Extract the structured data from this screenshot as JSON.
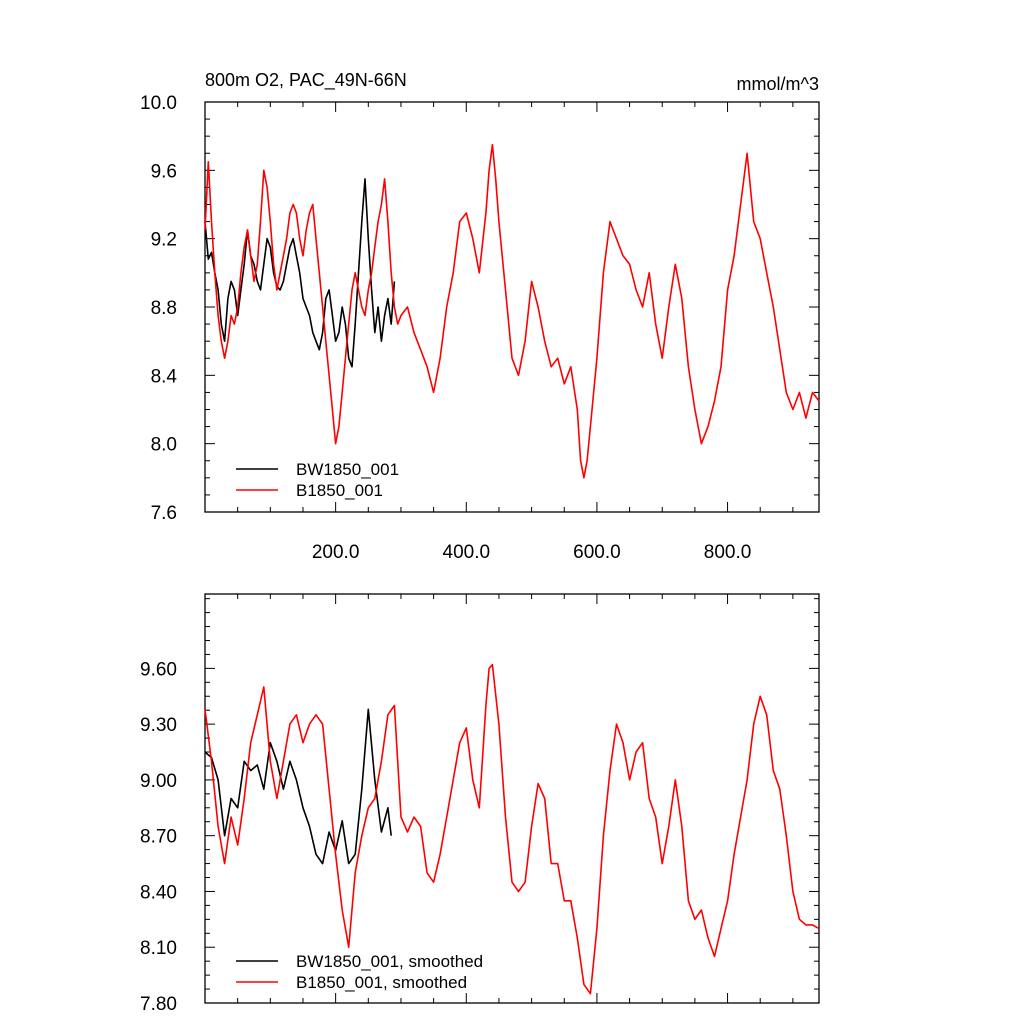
{
  "chart_data": [
    {
      "type": "line",
      "title": "800m O2, PAC_49N-66N",
      "units": "mmol/m^3",
      "xlabel": "",
      "ylabel": "",
      "xlim": [
        0,
        940
      ],
      "ylim": [
        7.6,
        10.0
      ],
      "xticks": [
        200,
        400,
        600,
        800
      ],
      "xtick_labels": [
        "200.0",
        "400.0",
        "600.0",
        "800.0"
      ],
      "yticks": [
        7.6,
        8.0,
        8.4,
        8.8,
        9.2,
        9.6,
        10.0
      ],
      "ytick_labels": [
        "7.6",
        "8.0",
        "8.4",
        "8.8",
        "9.2",
        "9.6",
        "10.0"
      ],
      "grid": false,
      "legend_position": "bottom-left",
      "series": [
        {
          "name": "BW1850_001",
          "color": "#000000",
          "x": [
            0,
            5,
            10,
            15,
            20,
            25,
            30,
            35,
            40,
            45,
            50,
            55,
            60,
            65,
            70,
            75,
            80,
            85,
            90,
            95,
            100,
            105,
            110,
            115,
            120,
            125,
            130,
            135,
            140,
            145,
            150,
            155,
            160,
            165,
            170,
            175,
            180,
            185,
            190,
            195,
            200,
            205,
            210,
            215,
            220,
            225,
            230,
            235,
            240,
            245,
            250,
            255,
            260,
            265,
            270,
            275,
            280,
            285,
            290
          ],
          "y": [
            9.3,
            9.08,
            9.12,
            9.0,
            8.9,
            8.7,
            8.6,
            8.85,
            8.95,
            8.9,
            8.75,
            8.9,
            9.05,
            9.25,
            9.1,
            9.05,
            8.95,
            8.9,
            9.05,
            9.2,
            9.15,
            9.0,
            8.92,
            8.9,
            8.95,
            9.05,
            9.15,
            9.2,
            9.1,
            9.0,
            8.85,
            8.8,
            8.75,
            8.65,
            8.6,
            8.55,
            8.65,
            8.85,
            8.9,
            8.75,
            8.6,
            8.65,
            8.8,
            8.7,
            8.5,
            8.45,
            8.7,
            9.0,
            9.3,
            9.55,
            9.2,
            8.9,
            8.65,
            8.8,
            8.6,
            8.75,
            8.85,
            8.7,
            8.95
          ]
        },
        {
          "name": "B1850_001",
          "color": "#ff0000",
          "x": [
            0,
            5,
            10,
            15,
            20,
            25,
            30,
            35,
            40,
            45,
            50,
            55,
            60,
            65,
            70,
            75,
            80,
            85,
            90,
            95,
            100,
            105,
            110,
            115,
            120,
            125,
            130,
            135,
            140,
            145,
            150,
            155,
            160,
            165,
            170,
            175,
            180,
            185,
            190,
            195,
            200,
            205,
            210,
            215,
            220,
            225,
            230,
            235,
            240,
            245,
            250,
            255,
            260,
            265,
            270,
            275,
            280,
            285,
            290,
            295,
            300,
            310,
            320,
            330,
            340,
            350,
            360,
            370,
            380,
            390,
            400,
            410,
            420,
            430,
            435,
            440,
            445,
            450,
            460,
            470,
            480,
            490,
            500,
            510,
            520,
            530,
            540,
            550,
            560,
            570,
            575,
            580,
            585,
            590,
            600,
            610,
            620,
            630,
            640,
            650,
            660,
            670,
            680,
            690,
            700,
            710,
            720,
            730,
            740,
            750,
            760,
            770,
            780,
            790,
            800,
            810,
            820,
            830,
            840,
            850,
            860,
            870,
            880,
            890,
            900,
            910,
            920,
            930,
            940
          ],
          "y": [
            9.25,
            9.65,
            9.3,
            9.0,
            8.75,
            8.6,
            8.5,
            8.6,
            8.75,
            8.7,
            8.8,
            9.0,
            9.15,
            9.25,
            9.1,
            8.95,
            9.05,
            9.3,
            9.6,
            9.5,
            9.3,
            9.05,
            8.9,
            9.0,
            9.1,
            9.2,
            9.35,
            9.4,
            9.35,
            9.2,
            9.1,
            9.25,
            9.35,
            9.4,
            9.2,
            9.0,
            8.8,
            8.6,
            8.4,
            8.2,
            8.0,
            8.1,
            8.3,
            8.5,
            8.7,
            8.9,
            9.0,
            8.9,
            8.8,
            8.75,
            8.9,
            9.0,
            9.15,
            9.3,
            9.4,
            9.55,
            9.3,
            9.0,
            8.8,
            8.7,
            8.75,
            8.8,
            8.65,
            8.55,
            8.45,
            8.3,
            8.5,
            8.8,
            9.0,
            9.3,
            9.35,
            9.2,
            9.0,
            9.35,
            9.6,
            9.75,
            9.55,
            9.3,
            8.9,
            8.5,
            8.4,
            8.6,
            8.95,
            8.8,
            8.6,
            8.45,
            8.5,
            8.35,
            8.45,
            8.2,
            7.9,
            7.8,
            7.9,
            8.1,
            8.5,
            9.0,
            9.3,
            9.2,
            9.1,
            9.05,
            8.9,
            8.8,
            9.0,
            8.7,
            8.5,
            8.8,
            9.05,
            8.85,
            8.45,
            8.2,
            8.0,
            8.1,
            8.25,
            8.45,
            8.9,
            9.1,
            9.4,
            9.7,
            9.3,
            9.2,
            9.0,
            8.8,
            8.55,
            8.3,
            8.2,
            8.3,
            8.15,
            8.3,
            8.25
          ]
        }
      ]
    },
    {
      "type": "line",
      "title": "",
      "xlabel": "",
      "ylabel": "",
      "xlim": [
        0,
        940
      ],
      "ylim": [
        7.8,
        10.0
      ],
      "xticks": [
        200,
        400,
        600,
        800
      ],
      "xtick_labels": [],
      "yticks": [
        7.8,
        8.1,
        8.4,
        8.7,
        9.0,
        9.3,
        9.6
      ],
      "ytick_labels": [
        "7.80",
        "8.10",
        "8.40",
        "8.70",
        "9.00",
        "9.30",
        "9.60"
      ],
      "grid": false,
      "legend_position": "bottom-left",
      "series": [
        {
          "name": "BW1850_001, smoothed",
          "color": "#000000",
          "x": [
            0,
            10,
            20,
            30,
            40,
            50,
            60,
            70,
            80,
            90,
            100,
            110,
            120,
            130,
            140,
            150,
            160,
            170,
            180,
            190,
            200,
            210,
            220,
            230,
            240,
            250,
            260,
            270,
            280,
            285
          ],
          "y": [
            9.15,
            9.12,
            9.0,
            8.7,
            8.9,
            8.85,
            9.1,
            9.05,
            9.08,
            8.95,
            9.2,
            9.1,
            8.95,
            9.1,
            9.0,
            8.85,
            8.75,
            8.6,
            8.55,
            8.72,
            8.62,
            8.78,
            8.55,
            8.6,
            8.95,
            9.38,
            9.0,
            8.72,
            8.85,
            8.7
          ]
        },
        {
          "name": "B1850_001, smoothed",
          "color": "#ff0000",
          "x": [
            0,
            10,
            20,
            30,
            40,
            50,
            60,
            70,
            80,
            90,
            100,
            110,
            120,
            130,
            140,
            150,
            160,
            170,
            180,
            190,
            200,
            210,
            220,
            230,
            240,
            250,
            260,
            270,
            280,
            290,
            300,
            310,
            320,
            330,
            340,
            350,
            360,
            370,
            380,
            390,
            400,
            410,
            420,
            430,
            435,
            440,
            450,
            460,
            470,
            480,
            490,
            500,
            510,
            520,
            530,
            540,
            550,
            560,
            570,
            580,
            590,
            600,
            610,
            620,
            630,
            640,
            650,
            660,
            670,
            680,
            690,
            700,
            710,
            720,
            730,
            740,
            750,
            760,
            770,
            780,
            790,
            800,
            810,
            820,
            830,
            840,
            850,
            860,
            870,
            880,
            890,
            900,
            910,
            920,
            930,
            940
          ],
          "y": [
            9.38,
            9.1,
            8.75,
            8.55,
            8.8,
            8.65,
            8.9,
            9.2,
            9.35,
            9.5,
            9.1,
            8.9,
            9.1,
            9.3,
            9.35,
            9.2,
            9.3,
            9.35,
            9.3,
            8.95,
            8.6,
            8.3,
            8.1,
            8.5,
            8.7,
            8.85,
            8.9,
            9.1,
            9.35,
            9.4,
            8.8,
            8.72,
            8.8,
            8.75,
            8.5,
            8.45,
            8.6,
            8.8,
            9.0,
            9.2,
            9.28,
            9.0,
            8.85,
            9.4,
            9.6,
            9.62,
            9.3,
            8.8,
            8.45,
            8.4,
            8.45,
            8.75,
            8.98,
            8.9,
            8.55,
            8.55,
            8.35,
            8.35,
            8.15,
            7.9,
            7.85,
            8.2,
            8.7,
            9.05,
            9.3,
            9.2,
            9.0,
            9.15,
            9.2,
            8.9,
            8.8,
            8.55,
            8.75,
            9.0,
            8.75,
            8.35,
            8.25,
            8.3,
            8.15,
            8.05,
            8.2,
            8.35,
            8.6,
            8.8,
            9.0,
            9.3,
            9.45,
            9.35,
            9.05,
            8.95,
            8.7,
            8.4,
            8.25,
            8.22,
            8.22,
            8.2
          ]
        }
      ]
    }
  ]
}
